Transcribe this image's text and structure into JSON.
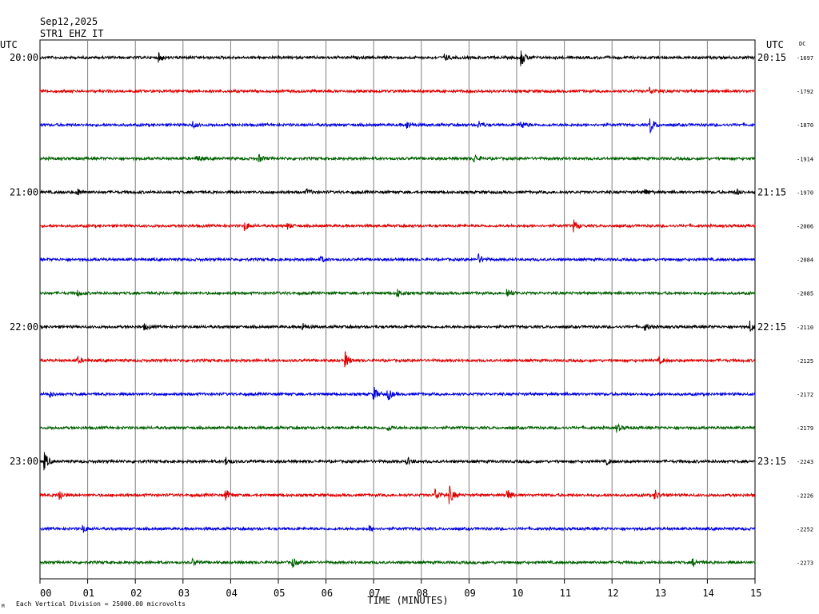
{
  "header": {
    "date": "Sep12,2025",
    "station": "STR1 EHZ IT",
    "utc_left": "UTC",
    "utc_right": "UTC",
    "dc_label": "DC"
  },
  "footer": {
    "scale_note": "Each Vertical Division = 25000.00 microvolts",
    "corner_mark": "M"
  },
  "colors": {
    "black": "#000000",
    "red": "#e00000",
    "blue": "#0000e0",
    "green": "#006000",
    "grid": "#808080"
  },
  "chart_data": {
    "type": "line",
    "title": "",
    "xlabel": "TIME (MINUTES)",
    "ylabel": "",
    "x_ticks": [
      "00",
      "01",
      "02",
      "03",
      "04",
      "05",
      "06",
      "07",
      "08",
      "09",
      "10",
      "11",
      "12",
      "13",
      "14",
      "15"
    ],
    "xlim": [
      0,
      15
    ],
    "grid": true,
    "traces": [
      {
        "left": "20:00",
        "right": "20:15",
        "dc": "-1697",
        "color": "#000000",
        "events": [
          [
            2.5,
            2.2
          ],
          [
            8.5,
            1.6
          ],
          [
            10.1,
            4.5
          ]
        ]
      },
      {
        "left": "",
        "right": "",
        "dc": "-1792",
        "color": "#e00000",
        "events": [
          [
            12.8,
            2.0
          ]
        ]
      },
      {
        "left": "",
        "right": "",
        "dc": "-1870",
        "color": "#0000e0",
        "events": [
          [
            3.2,
            1.8
          ],
          [
            7.7,
            2.2
          ],
          [
            9.2,
            2.2
          ],
          [
            10.1,
            2.0
          ],
          [
            12.8,
            5.0
          ]
        ]
      },
      {
        "left": "",
        "right": "",
        "dc": "-1914",
        "color": "#006000",
        "events": [
          [
            3.3,
            1.6
          ],
          [
            4.6,
            1.8
          ],
          [
            9.1,
            2.6
          ]
        ]
      },
      {
        "left": "21:00",
        "right": "21:15",
        "dc": "-1970",
        "color": "#000000",
        "events": [
          [
            0.8,
            1.8
          ],
          [
            5.6,
            1.6
          ],
          [
            12.7,
            1.8
          ],
          [
            14.6,
            1.8
          ]
        ]
      },
      {
        "left": "",
        "right": "",
        "dc": "-2006",
        "color": "#e00000",
        "events": [
          [
            4.3,
            2.5
          ],
          [
            5.2,
            1.6
          ],
          [
            11.2,
            3.2
          ]
        ]
      },
      {
        "left": "",
        "right": "",
        "dc": "-2084",
        "color": "#0000e0",
        "events": [
          [
            5.9,
            1.6
          ],
          [
            9.2,
            2.6
          ]
        ]
      },
      {
        "left": "",
        "right": "",
        "dc": "-2085",
        "color": "#006000",
        "events": [
          [
            0.8,
            1.4
          ],
          [
            7.5,
            2.2
          ],
          [
            9.8,
            2.8
          ]
        ]
      },
      {
        "left": "22:00",
        "right": "22:15",
        "dc": "-2110",
        "color": "#000000",
        "events": [
          [
            2.2,
            1.5
          ],
          [
            5.5,
            2.2
          ],
          [
            12.7,
            1.8
          ],
          [
            14.9,
            3.0
          ]
        ]
      },
      {
        "left": "",
        "right": "",
        "dc": "-2125",
        "color": "#e00000",
        "events": [
          [
            0.8,
            1.6
          ],
          [
            6.4,
            4.6
          ],
          [
            13.0,
            1.6
          ]
        ]
      },
      {
        "left": "",
        "right": "",
        "dc": "-2172",
        "color": "#0000e0",
        "events": [
          [
            0.2,
            1.6
          ],
          [
            7.0,
            4.2
          ],
          [
            7.3,
            3.5
          ]
        ]
      },
      {
        "left": "",
        "right": "",
        "dc": "-2179",
        "color": "#006000",
        "events": [
          [
            7.3,
            1.8
          ],
          [
            12.1,
            2.2
          ]
        ]
      },
      {
        "left": "23:00",
        "right": "23:15",
        "dc": "-2243",
        "color": "#000000",
        "events": [
          [
            0.1,
            4.8
          ],
          [
            3.9,
            2.2
          ],
          [
            7.7,
            2.2
          ],
          [
            11.9,
            1.6
          ]
        ]
      },
      {
        "left": "",
        "right": "",
        "dc": "-2226",
        "color": "#e00000",
        "events": [
          [
            0.4,
            3.6
          ],
          [
            3.9,
            3.0
          ],
          [
            8.3,
            3.4
          ],
          [
            8.6,
            4.6
          ],
          [
            9.8,
            3.4
          ],
          [
            12.9,
            3.0
          ]
        ]
      },
      {
        "left": "",
        "right": "",
        "dc": "-2252",
        "color": "#0000e0",
        "events": [
          [
            0.9,
            2.2
          ],
          [
            6.9,
            1.6
          ]
        ]
      },
      {
        "left": "",
        "right": "",
        "dc": "-2273",
        "color": "#006000",
        "events": [
          [
            3.2,
            1.6
          ],
          [
            5.3,
            2.4
          ],
          [
            13.7,
            1.8
          ]
        ]
      }
    ]
  }
}
